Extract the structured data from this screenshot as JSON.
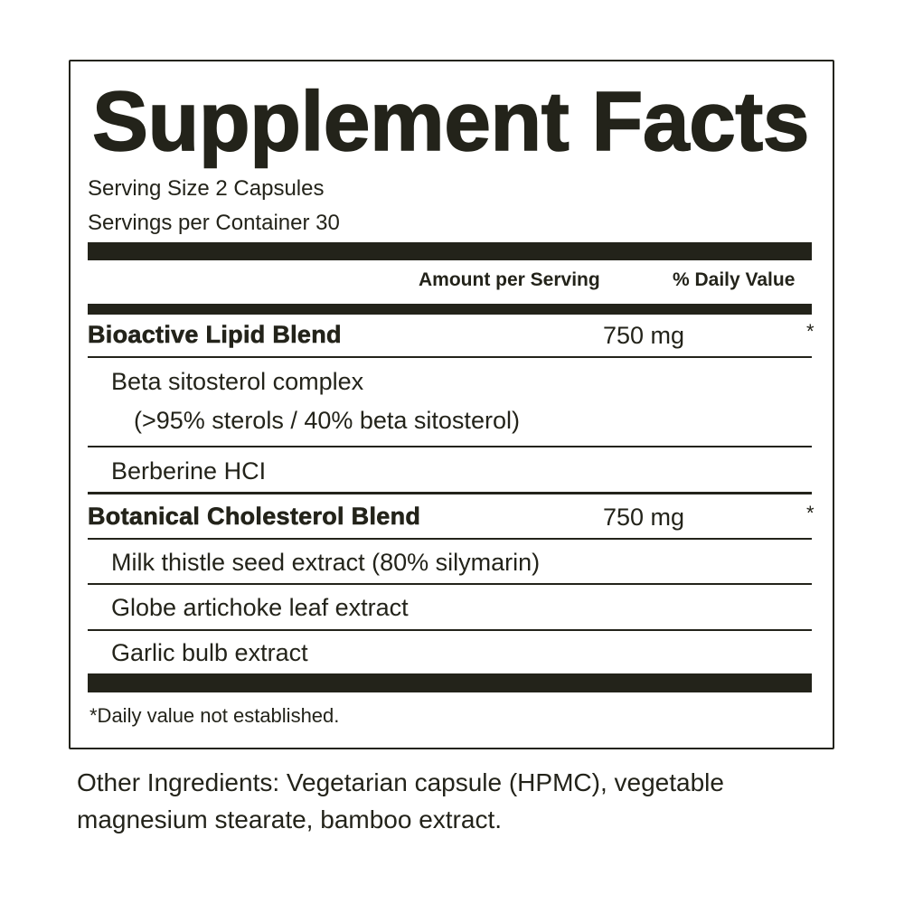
{
  "title": "Supplement Facts",
  "serving_size": "Serving Size 2 Capsules",
  "servings_per_container": "Servings per Container 30",
  "header": {
    "amount": "Amount per Serving",
    "dv": "% Daily Value"
  },
  "blends": [
    {
      "name": "Bioactive Lipid Blend",
      "amount": "750 mg",
      "dv": "*",
      "ingredients": [
        "Beta sitosterol complex",
        "(>95% sterols / 40% beta sitosterol)",
        "Berberine HCI"
      ]
    },
    {
      "name": "Botanical Cholesterol Blend",
      "amount": "750 mg",
      "dv": "*",
      "ingredients": [
        "Milk thistle seed extract (80% silymarin)",
        "Globe artichoke leaf extract",
        "Garlic bulb extract"
      ]
    }
  ],
  "footnote": "*Daily value not established.",
  "other_ingredients": [
    "Other Ingredients: Vegetarian capsule (HPMC), vegetable",
    "magnesium stearate, bamboo extract."
  ],
  "colors": {
    "ink": "#23231a",
    "background": "#ffffff"
  }
}
